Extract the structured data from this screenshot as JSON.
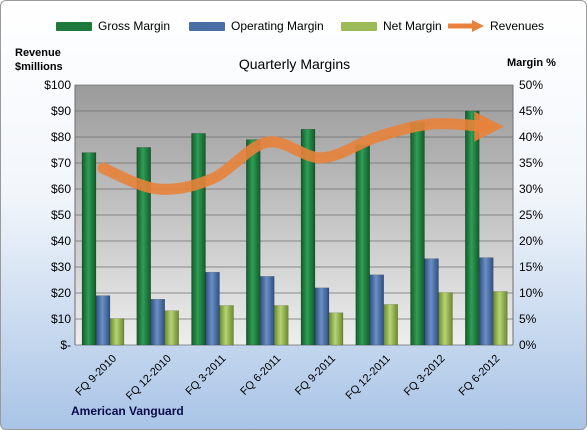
{
  "legend": {
    "gross": "Gross Margin",
    "operating": "Operating Margin",
    "net": "Net Margin",
    "revenues": "Revenues"
  },
  "axis_left_label": [
    "Revenue",
    "$millions"
  ],
  "axis_right_label": "Margin %",
  "company": "American Vanguard",
  "colors": {
    "gross": "#1e7a3c",
    "operating": "#4a6fa5",
    "net": "#9bbb59",
    "revenues": "#e8823a"
  },
  "chart_data": {
    "type": "bar",
    "title": "Quarterly Margins",
    "categories": [
      "FQ 9-2010",
      "FQ 12-2010",
      "FQ 3-2011",
      "FQ 6-2011",
      "FQ 9-2011",
      "FQ 12-2011",
      "FQ 3-2012",
      "FQ 6-2012"
    ],
    "series": [
      {
        "name": "Gross Margin",
        "axis": "right",
        "values": [
          37.0,
          38.0,
          40.7,
          39.5,
          41.5,
          38.5,
          42.8,
          45.0
        ]
      },
      {
        "name": "Operating Margin",
        "axis": "right",
        "values": [
          9.5,
          8.8,
          14.0,
          13.2,
          11.0,
          13.5,
          16.6,
          16.8
        ]
      },
      {
        "name": "Net Margin",
        "axis": "right",
        "values": [
          5.1,
          6.6,
          7.6,
          7.6,
          6.2,
          7.8,
          10.1,
          10.3
        ]
      },
      {
        "name": "Revenues",
        "type": "line",
        "axis": "left",
        "values": [
          68,
          60,
          64,
          78,
          72,
          80,
          85,
          84
        ]
      }
    ],
    "yleft": {
      "min": 0,
      "max": 100,
      "step": 10,
      "ticks": [
        "$-",
        "$10",
        "$20",
        "$30",
        "$40",
        "$50",
        "$60",
        "$70",
        "$80",
        "$90",
        "$100"
      ]
    },
    "yright": {
      "min": 0,
      "max": 50,
      "step": 5,
      "ticks": [
        "0%",
        "5%",
        "10%",
        "15%",
        "20%",
        "25%",
        "30%",
        "35%",
        "40%",
        "45%",
        "50%"
      ]
    },
    "grid": true,
    "legend_position": "top"
  }
}
